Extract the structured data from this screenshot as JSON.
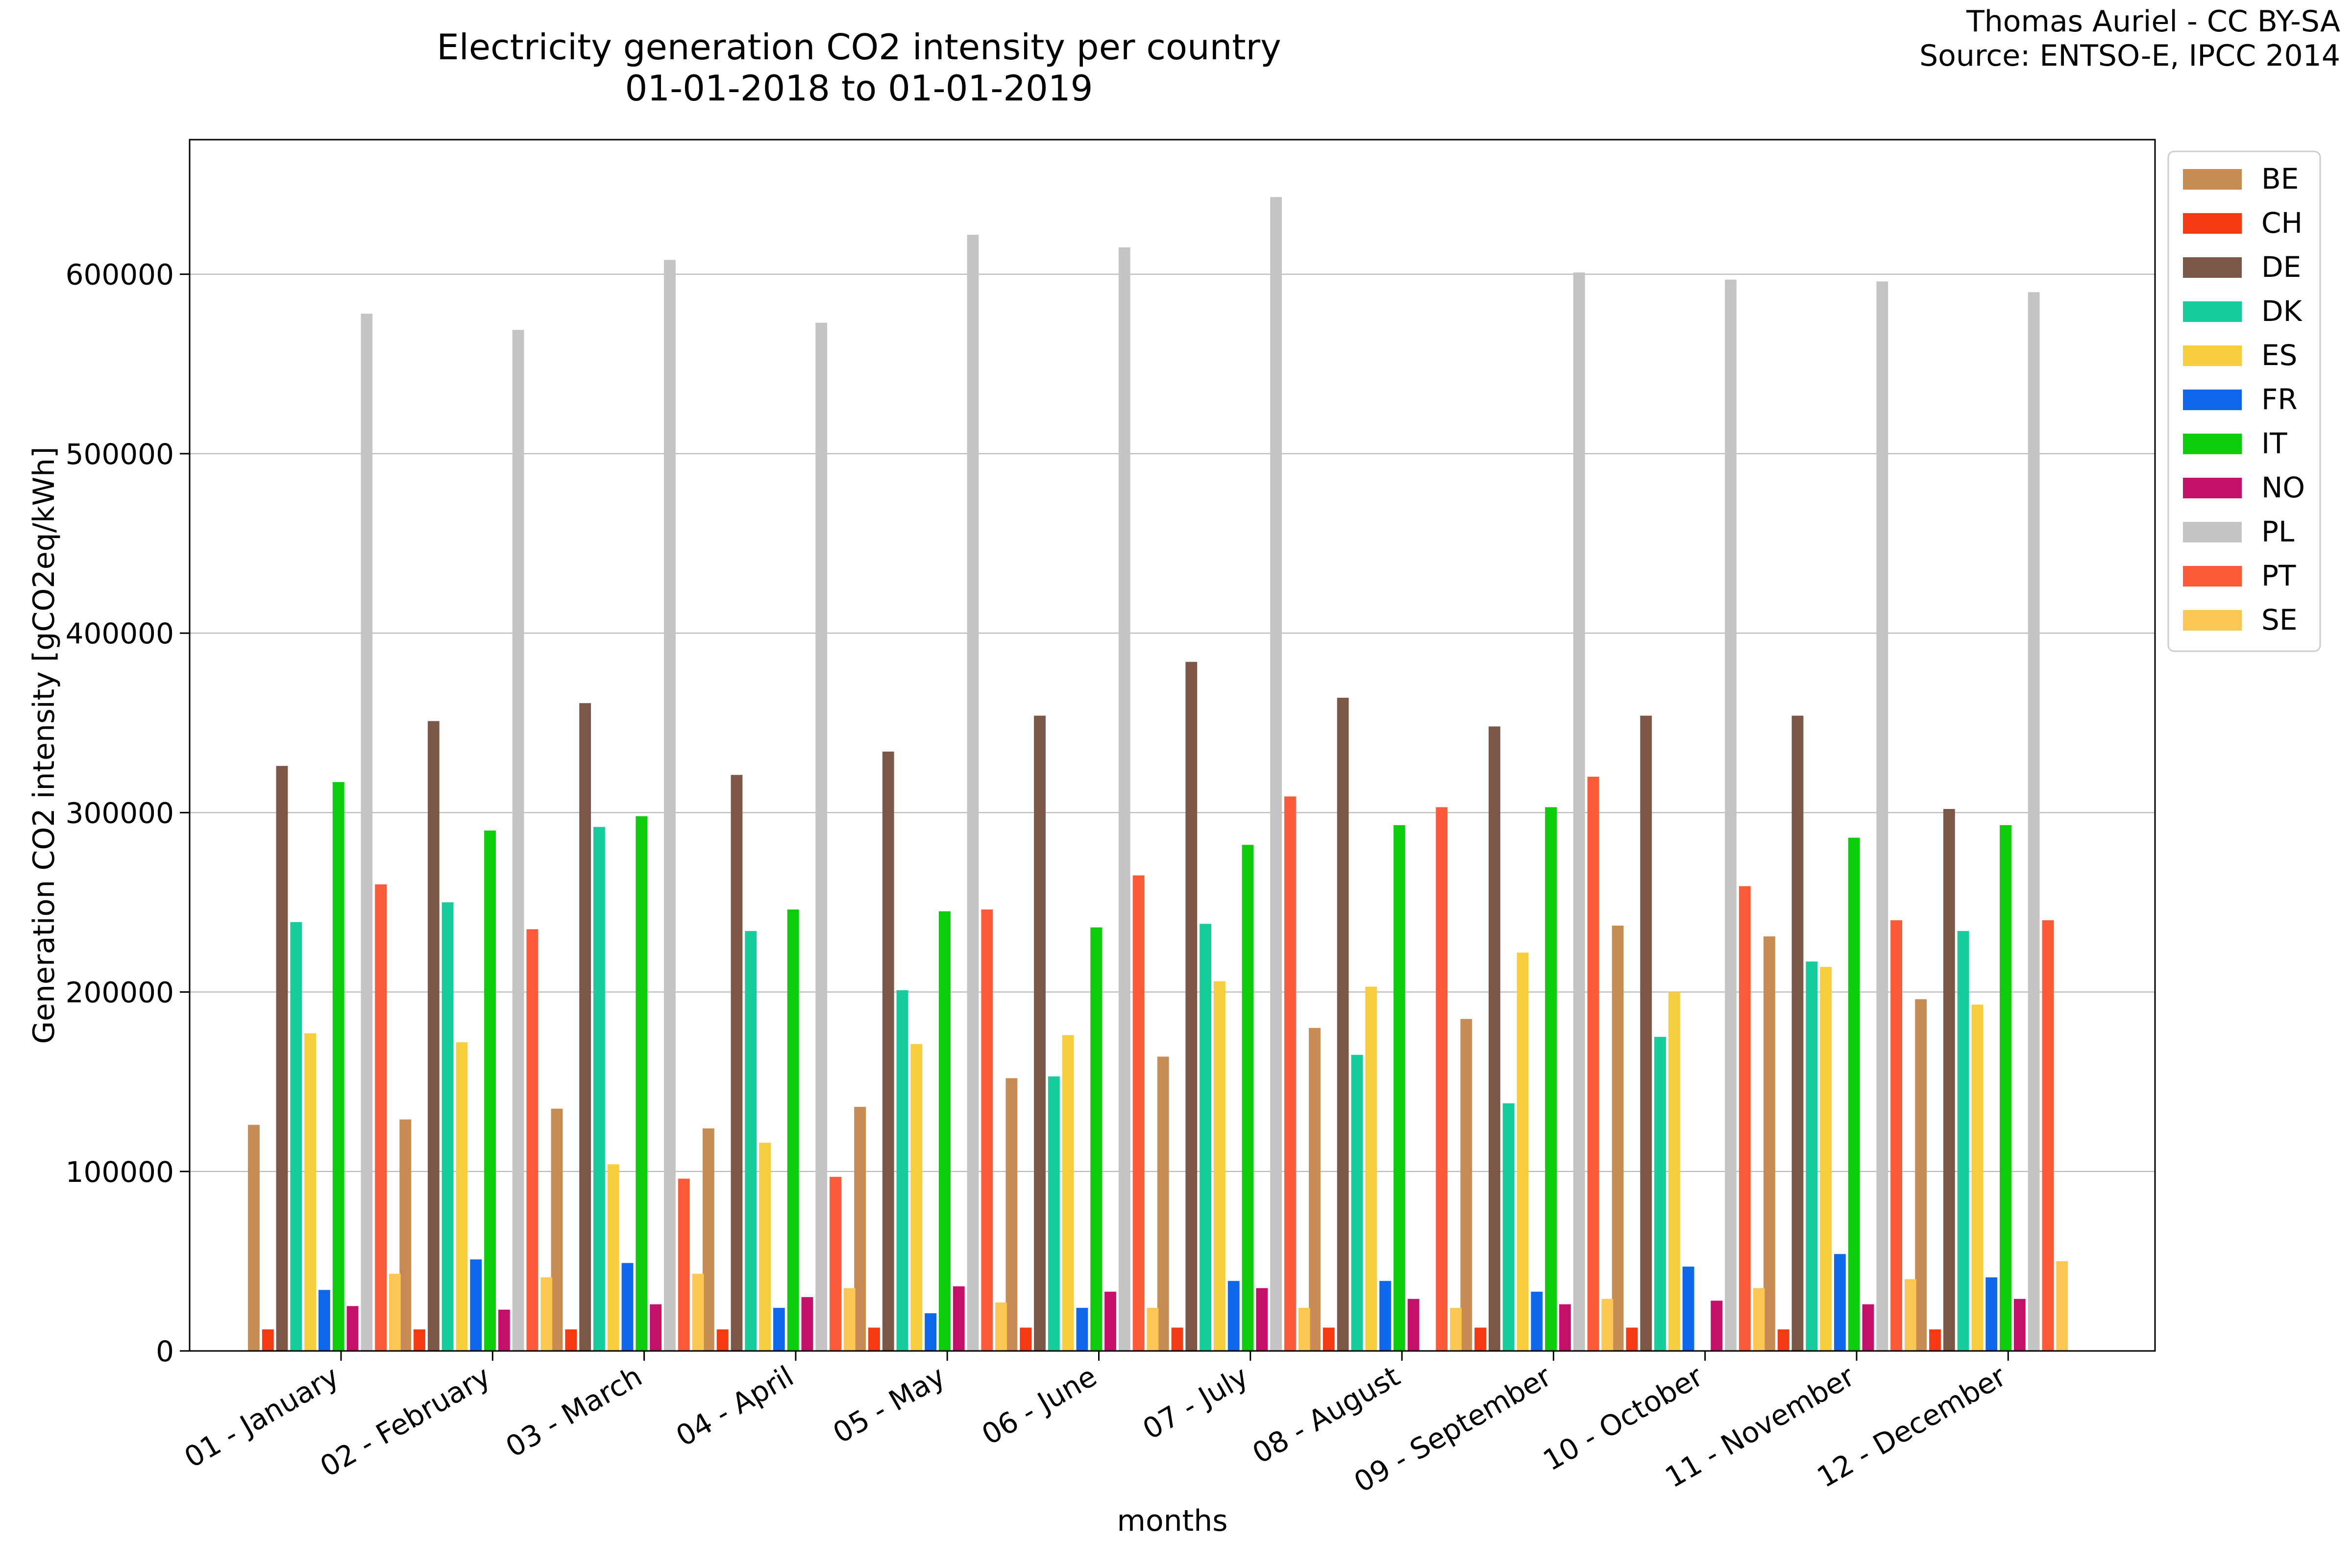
{
  "header": {
    "title_line1": "Electricity generation CO2 intensity per country",
    "title_line2": "01-01-2018 to 01-01-2019",
    "credit_line1": "Thomas Auriel - CC BY-SA",
    "credit_line2": "Source: ENTSO-E, IPCC 2014"
  },
  "chart_data": {
    "type": "bar",
    "title": "Electricity generation CO2 intensity per country",
    "subtitle": "01-01-2018 to 01-01-2019",
    "xlabel": "months",
    "ylabel": "Generation CO2 intensity [gCO2eq/kWh]",
    "ylim": [
      0,
      675000
    ],
    "yticks": [
      0,
      100000,
      200000,
      300000,
      400000,
      500000,
      600000
    ],
    "grid": "horizontal",
    "legend_position": "right, outside plot area, top",
    "categories": [
      "01 - January",
      "02 - February",
      "03 - March",
      "04 - April",
      "05 - May",
      "06 - June",
      "07 - July",
      "08 - August",
      "09 - September",
      "10 - October",
      "11 - November",
      "12 - December"
    ],
    "series": [
      {
        "name": "BE",
        "color": "#C68C53",
        "values": [
          126000,
          129000,
          135000,
          124000,
          136000,
          152000,
          164000,
          180000,
          185000,
          237000,
          231000,
          196000
        ]
      },
      {
        "name": "CH",
        "color": "#F53A13",
        "values": [
          12000,
          12000,
          12000,
          12000,
          13000,
          13000,
          13000,
          13000,
          13000,
          13000,
          12000,
          12000
        ]
      },
      {
        "name": "DE",
        "color": "#7C5748",
        "values": [
          326000,
          351000,
          361000,
          321000,
          334000,
          354000,
          384000,
          364000,
          348000,
          354000,
          354000,
          302000
        ]
      },
      {
        "name": "DK",
        "color": "#15CC9A",
        "values": [
          239000,
          250000,
          292000,
          234000,
          201000,
          153000,
          238000,
          165000,
          138000,
          175000,
          217000,
          234000
        ]
      },
      {
        "name": "ES",
        "color": "#F5CD3D",
        "values": [
          177000,
          172000,
          104000,
          116000,
          171000,
          176000,
          206000,
          203000,
          222000,
          200000,
          214000,
          193000
        ]
      },
      {
        "name": "FR",
        "color": "#0F68EB",
        "values": [
          34000,
          51000,
          49000,
          24000,
          21000,
          24000,
          39000,
          39000,
          33000,
          47000,
          54000,
          41000
        ]
      },
      {
        "name": "IT",
        "color": "#0CCC0C",
        "values": [
          317000,
          290000,
          298000,
          246000,
          245000,
          236000,
          282000,
          293000,
          303000,
          0,
          286000,
          293000
        ]
      },
      {
        "name": "NO",
        "color": "#C4106B",
        "values": [
          25000,
          23000,
          26000,
          30000,
          36000,
          33000,
          35000,
          29000,
          26000,
          28000,
          26000,
          29000
        ]
      },
      {
        "name": "PL",
        "color": "#C4C4C4",
        "values": [
          578000,
          569000,
          608000,
          573000,
          622000,
          615000,
          643000,
          0,
          601000,
          597000,
          596000,
          590000
        ]
      },
      {
        "name": "PT",
        "color": "#FC5A38",
        "values": [
          260000,
          235000,
          96000,
          97000,
          246000,
          265000,
          309000,
          303000,
          320000,
          259000,
          240000,
          240000
        ]
      },
      {
        "name": "SE",
        "color": "#FCC653",
        "values": [
          43000,
          41000,
          43000,
          35000,
          27000,
          24000,
          24000,
          24000,
          29000,
          35000,
          40000,
          50000
        ]
      }
    ]
  }
}
